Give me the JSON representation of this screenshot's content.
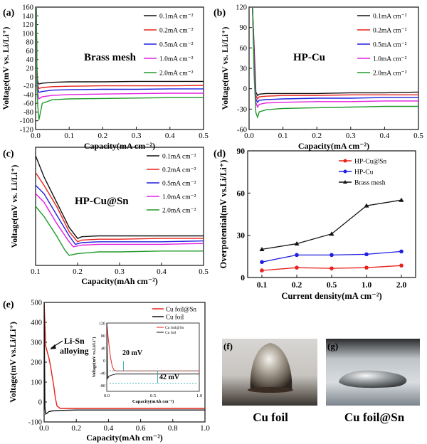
{
  "colors": {
    "black": "#111111",
    "red": "#e8221c",
    "blue": "#1f1fe0",
    "magenta": "#e21fe0",
    "green": "#1f9a2a",
    "teal": "#1aa0a0"
  },
  "panels": {
    "a": {
      "label": "(a)",
      "annotation": "Brass mesh"
    },
    "b": {
      "label": "(b)",
      "annotation": "HP-Cu"
    },
    "c": {
      "label": "(c)",
      "annotation": "HP-Cu@Sn"
    },
    "d": {
      "label": "(d)"
    },
    "e": {
      "label": "(e)",
      "annotation": "Li-Sn alloying"
    },
    "f": {
      "label": "(f)",
      "caption": "Cu foil"
    },
    "g": {
      "label": "(g)",
      "caption": "Cu foil@Sn"
    }
  },
  "chart_data": [
    {
      "id": "a",
      "type": "line",
      "xlabel": "Capacity(mA cm⁻²)",
      "ylabel": "Voltage(mV vs. Li/Li⁺)",
      "xlim": [
        0,
        0.5
      ],
      "ylim": [
        -120,
        160
      ],
      "xticks": [
        "0.0",
        "0.1",
        "0.2",
        "0.3",
        "0.4",
        "0.5"
      ],
      "yticks": [
        "-120",
        "-100",
        "-80",
        "-60",
        "-40",
        "-20",
        "0",
        "20",
        "40",
        "60",
        "80",
        "100",
        "120",
        "140",
        "160"
      ],
      "legend": "top-right",
      "series": [
        {
          "name": "0.1mA cm⁻²",
          "color": "#111111",
          "x": [
            0.002,
            0.004,
            0.006,
            0.01,
            0.02,
            0.05,
            0.1,
            0.2,
            0.3,
            0.4,
            0.5
          ],
          "y": [
            160,
            20,
            -10,
            -16,
            -14,
            -12,
            -11,
            -11,
            -10,
            -10,
            -10
          ]
        },
        {
          "name": "0.2mA cm⁻²",
          "color": "#e8221c",
          "x": [
            0.002,
            0.004,
            0.006,
            0.01,
            0.02,
            0.05,
            0.1,
            0.2,
            0.3,
            0.4,
            0.5
          ],
          "y": [
            160,
            10,
            -18,
            -26,
            -24,
            -22,
            -21,
            -20,
            -20,
            -20,
            -19
          ]
        },
        {
          "name": "0.5mA cm⁻²",
          "color": "#1f1fe0",
          "x": [
            0.002,
            0.004,
            0.006,
            0.01,
            0.02,
            0.05,
            0.1,
            0.2,
            0.3,
            0.4,
            0.5
          ],
          "y": [
            160,
            0,
            -25,
            -35,
            -33,
            -30,
            -29,
            -28,
            -28,
            -27,
            -27
          ]
        },
        {
          "name": "1.0mA cm⁻²",
          "color": "#e21fe0",
          "x": [
            0.002,
            0.004,
            0.006,
            0.01,
            0.02,
            0.05,
            0.1,
            0.2,
            0.3,
            0.4,
            0.5
          ],
          "y": [
            160,
            -10,
            -35,
            -50,
            -45,
            -42,
            -40,
            -39,
            -38,
            -37,
            -37
          ]
        },
        {
          "name": "2.0mA cm⁻²",
          "color": "#1f9a2a",
          "x": [
            0.002,
            0.004,
            0.006,
            0.01,
            0.02,
            0.05,
            0.1,
            0.2,
            0.3,
            0.4,
            0.5
          ],
          "y": [
            160,
            -20,
            -60,
            -98,
            -60,
            -52,
            -50,
            -49,
            -48,
            -47,
            -47
          ]
        }
      ]
    },
    {
      "id": "b",
      "type": "line",
      "xlabel": "Capacity(mA cm⁻²)",
      "ylabel": "Voltage(mV vs. Li/Li⁺)",
      "xlim": [
        0,
        0.5
      ],
      "ylim": [
        -60,
        120
      ],
      "xticks": [
        "0.0",
        "0.1",
        "0.2",
        "0.3",
        "0.4",
        "0.5"
      ],
      "yticks": [
        "-60",
        "-30",
        "0",
        "30",
        "60",
        "90",
        "120"
      ],
      "legend": "top-right",
      "series": [
        {
          "name": "0.1mA cm⁻²",
          "color": "#111111",
          "x": [
            0.01,
            0.015,
            0.02,
            0.025,
            0.03,
            0.05,
            0.1,
            0.2,
            0.3,
            0.4,
            0.5
          ],
          "y": [
            120,
            60,
            -5,
            -10,
            -8,
            -7,
            -7,
            -7,
            -6,
            -6,
            -5
          ]
        },
        {
          "name": "0.2mA cm⁻²",
          "color": "#e8221c",
          "x": [
            0.01,
            0.015,
            0.02,
            0.025,
            0.03,
            0.05,
            0.1,
            0.2,
            0.3,
            0.4,
            0.5
          ],
          "y": [
            120,
            50,
            -10,
            -15,
            -12,
            -11,
            -10,
            -10,
            -9,
            -9,
            -9
          ]
        },
        {
          "name": "0.5mA cm⁻²",
          "color": "#1f1fe0",
          "x": [
            0.01,
            0.015,
            0.02,
            0.025,
            0.03,
            0.05,
            0.1,
            0.2,
            0.3,
            0.4,
            0.5
          ],
          "y": [
            120,
            40,
            -15,
            -20,
            -17,
            -16,
            -15,
            -14,
            -14,
            -13,
            -13
          ]
        },
        {
          "name": "1.0mA cm⁻²",
          "color": "#e21fe0",
          "x": [
            0.01,
            0.015,
            0.02,
            0.025,
            0.03,
            0.05,
            0.1,
            0.2,
            0.3,
            0.4,
            0.5
          ],
          "y": [
            120,
            30,
            -20,
            -27,
            -23,
            -21,
            -20,
            -19,
            -19,
            -18,
            -18
          ]
        },
        {
          "name": "2.0mA cm⁻²",
          "color": "#1f9a2a",
          "x": [
            0.01,
            0.015,
            0.02,
            0.025,
            0.03,
            0.05,
            0.1,
            0.2,
            0.3,
            0.4,
            0.5
          ],
          "y": [
            120,
            20,
            -35,
            -42,
            -34,
            -31,
            -29,
            -28,
            -27,
            -26,
            -26
          ]
        }
      ]
    },
    {
      "id": "c",
      "type": "line",
      "xlabel": "Capacity(mAh cm⁻²)",
      "ylabel": "Voltage(mV vs. Li/Li⁺)",
      "xlim": [
        0.1,
        0.5
      ],
      "ylim": [
        -40,
        100
      ],
      "xticks": [
        "0.1",
        "0.2",
        "0.3",
        "0.4",
        "0.5"
      ],
      "yticks": [],
      "legend": "top-right",
      "series": [
        {
          "name": "0.1mA cm⁻²",
          "color": "#111111",
          "x": [
            0.1,
            0.12,
            0.15,
            0.18,
            0.2,
            0.21,
            0.25,
            0.3,
            0.4,
            0.5
          ],
          "y": [
            90,
            65,
            35,
            5,
            -8,
            -6,
            -5,
            -5,
            -5,
            -5
          ]
        },
        {
          "name": "0.2mA cm⁻²",
          "color": "#e8221c",
          "x": [
            0.1,
            0.12,
            0.15,
            0.18,
            0.2,
            0.21,
            0.25,
            0.3,
            0.4,
            0.5
          ],
          "y": [
            70,
            55,
            30,
            0,
            -12,
            -10,
            -9,
            -9,
            -8,
            -8
          ]
        },
        {
          "name": "0.5mA cm⁻²",
          "color": "#1f1fe0",
          "x": [
            0.1,
            0.12,
            0.15,
            0.18,
            0.195,
            0.21,
            0.25,
            0.3,
            0.4,
            0.5
          ],
          "y": [
            55,
            45,
            20,
            -5,
            -15,
            -13,
            -12,
            -12,
            -12,
            -11
          ]
        },
        {
          "name": "1.0mA cm⁻²",
          "color": "#e21fe0",
          "x": [
            0.1,
            0.12,
            0.15,
            0.18,
            0.19,
            0.21,
            0.25,
            0.3,
            0.4,
            0.5
          ],
          "y": [
            45,
            35,
            10,
            -12,
            -18,
            -16,
            -15,
            -15,
            -15,
            -14
          ]
        },
        {
          "name": "2.0mA cm⁻²",
          "color": "#1f9a2a",
          "x": [
            0.1,
            0.12,
            0.15,
            0.17,
            0.18,
            0.2,
            0.25,
            0.3,
            0.4,
            0.5
          ],
          "y": [
            30,
            18,
            -5,
            -22,
            -28,
            -26,
            -24,
            -24,
            -23,
            -23
          ]
        }
      ]
    },
    {
      "id": "d",
      "type": "line",
      "xlabel": "Current density(mA cm⁻²)",
      "ylabel": "Overpotential(mV vs.Li/Li⁺)",
      "categories": [
        "0.1",
        "0.2",
        "0.5",
        "1.0",
        "2.0"
      ],
      "ylim": [
        0,
        90
      ],
      "yticks": [
        "0",
        "30",
        "60",
        "90"
      ],
      "legend": "top-left",
      "series": [
        {
          "name": "HP-Cu@Sn",
          "color": "#e8221c",
          "values": [
            5,
            7,
            6.5,
            7,
            8.5
          ]
        },
        {
          "name": "HP-Cu",
          "color": "#1f1fe0",
          "values": [
            11,
            16,
            16,
            16.5,
            18.5
          ]
        },
        {
          "name": "Brass mesh",
          "color": "#111111",
          "values": [
            20,
            24,
            31,
            51,
            55
          ]
        }
      ]
    },
    {
      "id": "e",
      "type": "line",
      "xlabel": "Capacity(mAh cm⁻²)",
      "ylabel": "Voltage(mV vs.Li/Li⁺)",
      "xlim": [
        0,
        1.0
      ],
      "ylim": [
        -100,
        500
      ],
      "xticks": [
        "0.0",
        "0.2",
        "0.4",
        "0.6",
        "0.8",
        "1.0"
      ],
      "yticks": [
        "-100",
        "0",
        "100",
        "200",
        "300",
        "400",
        "500"
      ],
      "legend": "top-right",
      "series": [
        {
          "name": "Cu foil@Sn",
          "color": "#e8221c",
          "x": [
            0.0,
            0.01,
            0.02,
            0.03,
            0.04,
            0.05,
            0.06,
            0.07,
            0.08,
            0.1,
            0.2,
            0.4,
            0.6,
            0.8,
            1.0
          ],
          "y": [
            500,
            280,
            250,
            220,
            180,
            130,
            80,
            20,
            -20,
            -32,
            -32,
            -32,
            -32,
            -32,
            -32
          ]
        },
        {
          "name": "Cu foil",
          "color": "#111111",
          "x": [
            0.0,
            0.005,
            0.01,
            0.02,
            0.03,
            0.05,
            0.1,
            0.2,
            0.4,
            0.6,
            0.8,
            1.0
          ],
          "y": [
            500,
            -30,
            -60,
            -55,
            -48,
            -45,
            -42,
            -40,
            -40,
            -40,
            -40,
            -40
          ]
        }
      ],
      "inset": {
        "xlim": [
          0,
          1.0
        ],
        "ylim": [
          -100,
          120
        ],
        "xticks": [
          "0.0",
          "0.5",
          "1.0"
        ],
        "yticks": [
          "-80",
          "-40",
          "0",
          "40",
          "80",
          "120"
        ],
        "xlabel": "Capacity(mAh cm⁻²)",
        "ylabel": "Voltage(mV vs.Li/Li⁺)",
        "annotations": [
          "20 mV",
          "42 mV"
        ],
        "legend": [
          "Cu foil@Sn",
          "Cu foil"
        ]
      }
    }
  ]
}
